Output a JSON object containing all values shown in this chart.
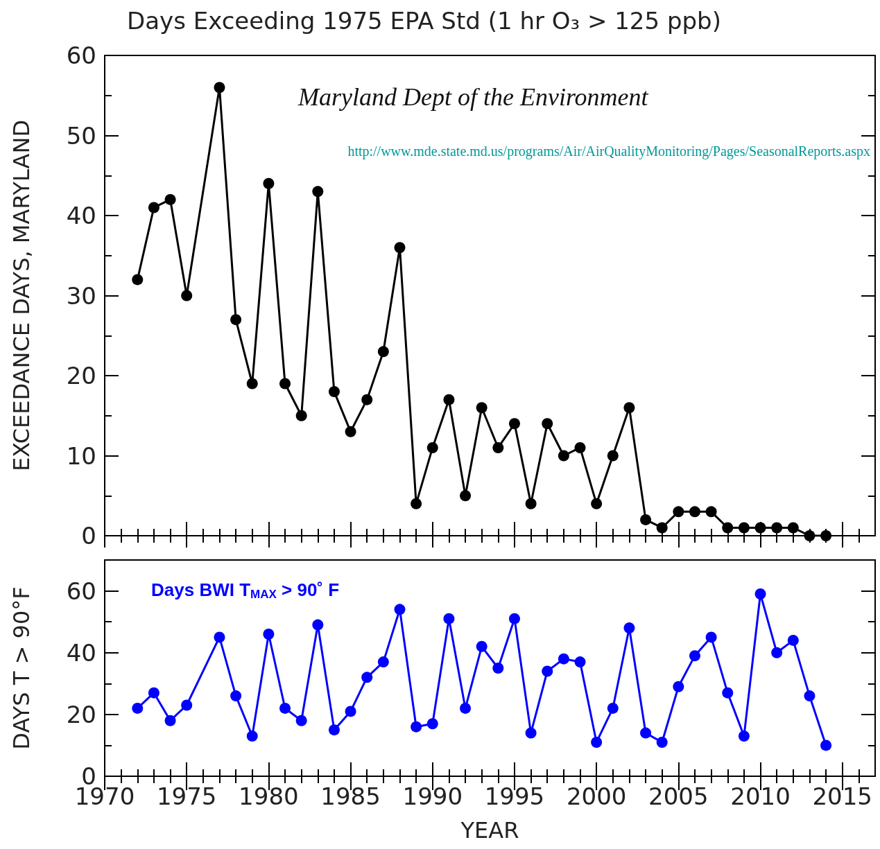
{
  "chart_data": [
    {
      "type": "line",
      "title": "Days Exceeding 1975 EPA Std (1 hr O₃ > 125 ppb)",
      "ylabel": "EXCEEDANCE DAYS, MARYLAND",
      "annotations": [
        "Maryland Dept of the Environment",
        "http://www.mde.state.md.us/programs/Air/AirQualityMonitoring/Pages/SeasonalReports.aspx"
      ],
      "x": [
        1972,
        1973,
        1974,
        1975,
        1977,
        1978,
        1979,
        1980,
        1981,
        1982,
        1983,
        1984,
        1985,
        1986,
        1987,
        1988,
        1989,
        1990,
        1991,
        1992,
        1993,
        1994,
        1995,
        1996,
        1997,
        1998,
        1999,
        2000,
        2001,
        2002,
        2003,
        2004,
        2005,
        2006,
        2007,
        2008,
        2009,
        2010,
        2011,
        2012,
        2013,
        2014
      ],
      "series": [
        {
          "color": "#000000",
          "values": [
            32,
            41,
            42,
            30,
            56,
            27,
            19,
            44,
            19,
            15,
            43,
            18,
            13,
            17,
            23,
            36,
            4,
            11,
            17,
            5,
            16,
            11,
            14,
            4,
            14,
            10,
            11,
            4,
            10,
            16,
            2,
            1,
            3,
            3,
            3,
            1,
            1,
            1,
            1,
            1,
            0,
            0
          ]
        }
      ],
      "xlim": [
        1970,
        2017
      ],
      "xticks": [
        1970,
        {
          "value": 1971,
          "label": null
        },
        {
          "value": 1972,
          "label": null
        },
        {
          "value": 1973,
          "label": null
        },
        {
          "value": 1974,
          "label": null
        },
        1975,
        {
          "value": 1976,
          "label": null
        },
        {
          "value": 1977,
          "label": null
        },
        {
          "value": 1978,
          "label": null
        },
        {
          "value": 1979,
          "label": null
        },
        1980,
        {
          "value": 1981,
          "label": null
        },
        {
          "value": 1982,
          "label": null
        },
        {
          "value": 1983,
          "label": null
        },
        {
          "value": 1984,
          "label": null
        },
        1985,
        {
          "value": 1986,
          "label": null
        },
        {
          "value": 1987,
          "label": null
        },
        {
          "value": 1988,
          "label": null
        },
        {
          "value": 1989,
          "label": null
        },
        1990,
        {
          "value": 1991,
          "label": null
        },
        {
          "value": 1992,
          "label": null
        },
        {
          "value": 1993,
          "label": null
        },
        {
          "value": 1994,
          "label": null
        },
        1995,
        {
          "value": 1996,
          "label": null
        },
        {
          "value": 1997,
          "label": null
        },
        {
          "value": 1998,
          "label": null
        },
        {
          "value": 1999,
          "label": null
        },
        2000,
        {
          "value": 2001,
          "label": null
        },
        {
          "value": 2002,
          "label": null
        },
        {
          "value": 2003,
          "label": null
        },
        {
          "value": 2004,
          "label": null
        },
        2005,
        {
          "value": 2006,
          "label": null
        },
        {
          "value": 2007,
          "label": null
        },
        {
          "value": 2008,
          "label": null
        },
        {
          "value": 2009,
          "label": null
        },
        2010,
        {
          "value": 2011,
          "label": null
        },
        {
          "value": 2012,
          "label": null
        },
        {
          "value": 2013,
          "label": null
        },
        {
          "value": 2014,
          "label": null
        },
        2015,
        {
          "value": 2016,
          "label": null
        }
      ],
      "ylim": [
        0,
        60
      ],
      "yticks": [
        0,
        {
          "value": 5,
          "label": null
        },
        10,
        {
          "value": 15,
          "label": null
        },
        20,
        {
          "value": 25,
          "label": null
        },
        30,
        {
          "value": 35,
          "label": null
        },
        40,
        {
          "value": 45,
          "label": null
        },
        50,
        {
          "value": 55,
          "label": null
        },
        60
      ],
      "tick_labels": "y",
      "marker": "circle",
      "line_style": "solid",
      "grid": false,
      "legend": false
    },
    {
      "type": "line",
      "xlabel": "YEAR",
      "ylabel": "DAYS T > 90°F",
      "x": [
        1972,
        1973,
        1974,
        1975,
        1977,
        1978,
        1979,
        1980,
        1981,
        1982,
        1983,
        1984,
        1985,
        1986,
        1987,
        1988,
        1989,
        1990,
        1991,
        1992,
        1993,
        1994,
        1995,
        1996,
        1997,
        1998,
        1999,
        2000,
        2001,
        2002,
        2003,
        2004,
        2005,
        2006,
        2007,
        2008,
        2009,
        2010,
        2011,
        2012,
        2013,
        2014
      ],
      "series": [
        {
          "name": "Days BWI T$_{MAX}$ > 90˚ F",
          "color": "#0000ff",
          "values": [
            22,
            27,
            18,
            23,
            45,
            26,
            13,
            46,
            22,
            18,
            49,
            15,
            21,
            32,
            37,
            54,
            16,
            17,
            51,
            22,
            42,
            35,
            51,
            14,
            34,
            38,
            37,
            11,
            22,
            48,
            14,
            11,
            29,
            39,
            45,
            27,
            13,
            59,
            40,
            44,
            26,
            10
          ]
        }
      ],
      "xlim": [
        1970,
        2017
      ],
      "xticks": [
        1970,
        {
          "value": 1971,
          "label": null
        },
        {
          "value": 1972,
          "label": null
        },
        {
          "value": 1973,
          "label": null
        },
        {
          "value": 1974,
          "label": null
        },
        1975,
        {
          "value": 1976,
          "label": null
        },
        {
          "value": 1977,
          "label": null
        },
        {
          "value": 1978,
          "label": null
        },
        {
          "value": 1979,
          "label": null
        },
        1980,
        {
          "value": 1981,
          "label": null
        },
        {
          "value": 1982,
          "label": null
        },
        {
          "value": 1983,
          "label": null
        },
        {
          "value": 1984,
          "label": null
        },
        1985,
        {
          "value": 1986,
          "label": null
        },
        {
          "value": 1987,
          "label": null
        },
        {
          "value": 1988,
          "label": null
        },
        {
          "value": 1989,
          "label": null
        },
        1990,
        {
          "value": 1991,
          "label": null
        },
        {
          "value": 1992,
          "label": null
        },
        {
          "value": 1993,
          "label": null
        },
        {
          "value": 1994,
          "label": null
        },
        1995,
        {
          "value": 1996,
          "label": null
        },
        {
          "value": 1997,
          "label": null
        },
        {
          "value": 1998,
          "label": null
        },
        {
          "value": 1999,
          "label": null
        },
        2000,
        {
          "value": 2001,
          "label": null
        },
        {
          "value": 2002,
          "label": null
        },
        {
          "value": 2003,
          "label": null
        },
        {
          "value": 2004,
          "label": null
        },
        2005,
        {
          "value": 2006,
          "label": null
        },
        {
          "value": 2007,
          "label": null
        },
        {
          "value": 2008,
          "label": null
        },
        {
          "value": 2009,
          "label": null
        },
        2010,
        {
          "value": 2011,
          "label": null
        },
        {
          "value": 2012,
          "label": null
        },
        {
          "value": 2013,
          "label": null
        },
        {
          "value": 2014,
          "label": null
        },
        2015,
        {
          "value": 2016,
          "label": null
        }
      ],
      "ylim": [
        0,
        70
      ],
      "yticks": [
        0,
        {
          "value": 10,
          "label": null
        },
        20,
        {
          "value": 30,
          "label": null
        },
        40,
        {
          "value": 50,
          "label": null
        },
        60
      ],
      "marker": "circle",
      "line_style": "solid",
      "grid": false,
      "legend": false
    }
  ]
}
